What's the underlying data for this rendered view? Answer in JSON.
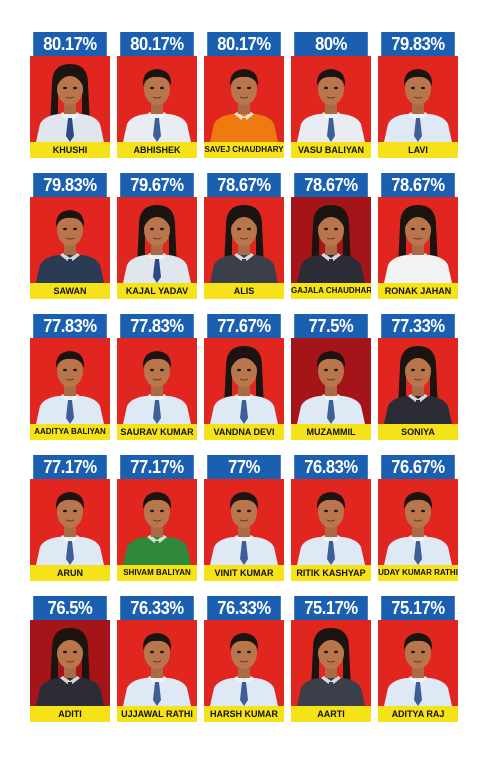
{
  "students": [
    {
      "percent": "80.17%",
      "name": "KHUSHI",
      "hair": "long",
      "shirt": "#dfe6ee",
      "tie": "#2b4a86"
    },
    {
      "percent": "80.17%",
      "name": "ABHISHEK",
      "hair": "short",
      "shirt": "#e9edf3",
      "tie": "#3e5f95"
    },
    {
      "percent": "80.17%",
      "name": "SAVEJ CHAUDHARY",
      "hair": "short",
      "shirt": "#ef7a10",
      "tie": "#ef7a10"
    },
    {
      "percent": "80%",
      "name": "VASU BALIYAN",
      "hair": "short",
      "shirt": "#e9edf3",
      "tie": "#3e5f95"
    },
    {
      "percent": "79.83%",
      "name": "LAVI",
      "hair": "short",
      "shirt": "#dfe8f5",
      "tie": "#3e5f95"
    },
    {
      "percent": "79.83%",
      "name": "SAWAN",
      "hair": "short",
      "shirt": "#2b3a55",
      "tie": "#2b3a55"
    },
    {
      "percent": "79.67%",
      "name": "KAJAL YADAV",
      "hair": "long",
      "shirt": "#dfe6ee",
      "tie": "#2b4a86"
    },
    {
      "percent": "78.67%",
      "name": "ALIS",
      "hair": "long",
      "shirt": "#3a3f4a",
      "tie": "#3a3f4a"
    },
    {
      "percent": "78.67%",
      "name": "GAJALA CHAUDHARY",
      "hair": "long",
      "shirt": "#2c2c36",
      "tie": "#2c2c36"
    },
    {
      "percent": "78.67%",
      "name": "RONAK JAHAN",
      "hair": "long",
      "shirt": "#f2f2f2",
      "tie": "#f2f2f2"
    },
    {
      "percent": "77.83%",
      "name": "AADITYA BALIYAN",
      "hair": "short",
      "shirt": "#dfe8f5",
      "tie": "#3e5f95"
    },
    {
      "percent": "77.83%",
      "name": "SAURAV KUMAR",
      "hair": "short",
      "shirt": "#dfe8f5",
      "tie": "#3e5f95"
    },
    {
      "percent": "77.67%",
      "name": "VANDNA DEVI",
      "hair": "long",
      "shirt": "#dfe8f5",
      "tie": "#3e5f95"
    },
    {
      "percent": "77.5%",
      "name": "MUZAMMIL",
      "hair": "short",
      "shirt": "#dfe8f5",
      "tie": "#3e5f95"
    },
    {
      "percent": "77.33%",
      "name": "SONIYA",
      "hair": "long",
      "shirt": "#2c2c36",
      "tie": "#2c2c36"
    },
    {
      "percent": "77.17%",
      "name": "ARUN",
      "hair": "short",
      "shirt": "#dfe8f5",
      "tie": "#3e5f95"
    },
    {
      "percent": "77.17%",
      "name": "SHIVAM BALIYAN",
      "hair": "short",
      "shirt": "#2e8a3a",
      "tie": "#2e8a3a"
    },
    {
      "percent": "77%",
      "name": "VINIT KUMAR",
      "hair": "short",
      "shirt": "#dfe8f5",
      "tie": "#3e5f95"
    },
    {
      "percent": "76.83%",
      "name": "RITIK KASHYAP",
      "hair": "short",
      "shirt": "#dfe8f5",
      "tie": "#3e5f95"
    },
    {
      "percent": "76.67%",
      "name": "UDAY KUMAR RATHI",
      "hair": "short",
      "shirt": "#dfe8f5",
      "tie": "#3e5f95"
    },
    {
      "percent": "76.5%",
      "name": "ADITI",
      "hair": "long",
      "shirt": "#2c2c36",
      "tie": "#2c2c36"
    },
    {
      "percent": "76.33%",
      "name": "UJJAWAL RATHI",
      "hair": "short",
      "shirt": "#dfe8f5",
      "tie": "#3e5f95"
    },
    {
      "percent": "76.33%",
      "name": "HARSH KUMAR",
      "hair": "short",
      "shirt": "#dfe8f5",
      "tie": "#3e5f95"
    },
    {
      "percent": "75.17%",
      "name": "AARTI",
      "hair": "long",
      "shirt": "#3a3f4a",
      "tie": "#3a3f4a"
    },
    {
      "percent": "75.17%",
      "name": "ADITYA RAJ",
      "hair": "short",
      "shirt": "#dfe8f5",
      "tie": "#3e5f95"
    }
  ],
  "colors": {
    "percent_bg": "#1a5fb0",
    "name_bg": "#f6e219",
    "photo_bg": "#e0261e"
  }
}
